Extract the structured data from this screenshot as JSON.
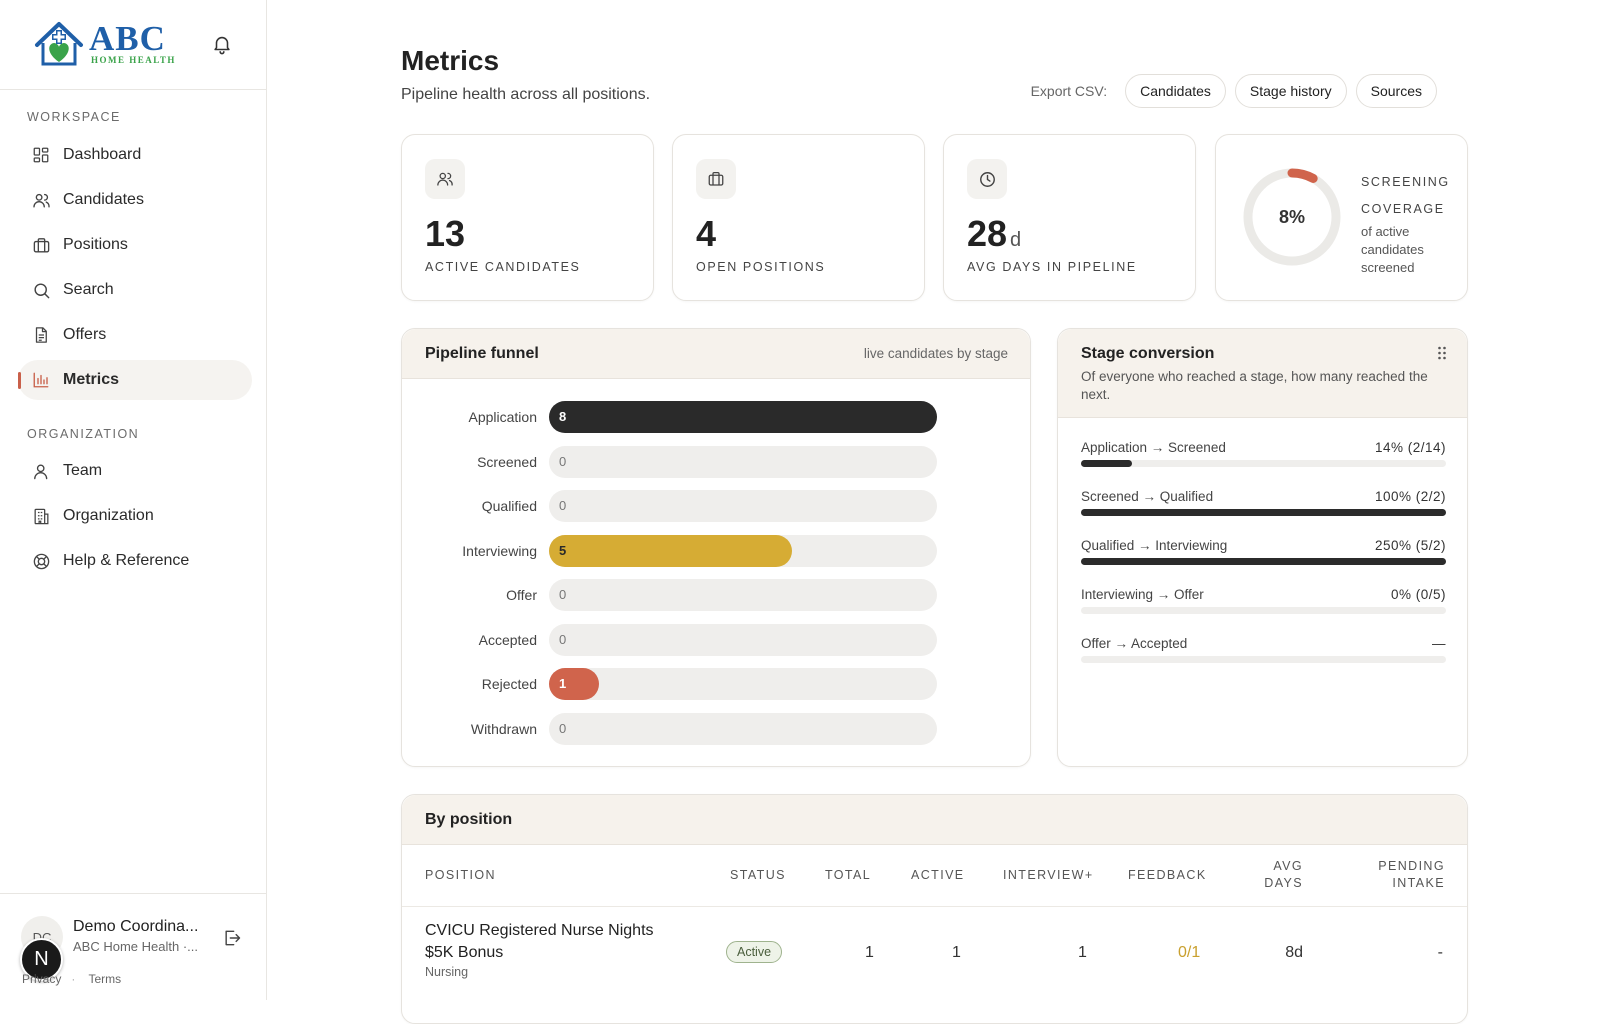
{
  "brand": {
    "name": "ABC",
    "tagline": "HOME HEALTH"
  },
  "sidebar": {
    "workspace_label": "WORKSPACE",
    "organization_label": "ORGANIZATION",
    "workspace_items": [
      {
        "label": "Dashboard",
        "icon": "dashboard-icon"
      },
      {
        "label": "Candidates",
        "icon": "users-icon"
      },
      {
        "label": "Positions",
        "icon": "briefcase-icon"
      },
      {
        "label": "Search",
        "icon": "search-icon"
      },
      {
        "label": "Offers",
        "icon": "document-icon"
      },
      {
        "label": "Metrics",
        "icon": "bar-chart-icon",
        "active": true
      }
    ],
    "organization_items": [
      {
        "label": "Team",
        "icon": "user-icon"
      },
      {
        "label": "Organization",
        "icon": "building-icon"
      },
      {
        "label": "Help & Reference",
        "icon": "lifebuoy-icon"
      }
    ]
  },
  "user": {
    "initials": "DC",
    "name": "Demo Coordina...",
    "org": "ABC Home Health ·...",
    "badge_letter": "N",
    "privacy": "Privacy",
    "terms": "Terms"
  },
  "header": {
    "title": "Metrics",
    "subtitle": "Pipeline health across all positions.",
    "export_label": "Export CSV:",
    "export_buttons": [
      "Candidates",
      "Stage history",
      "Sources"
    ]
  },
  "kpis": [
    {
      "value": "13",
      "unit": "",
      "label": "ACTIVE CANDIDATES",
      "icon": "users-icon"
    },
    {
      "value": "4",
      "unit": "",
      "label": "OPEN POSITIONS",
      "icon": "briefcase-icon"
    },
    {
      "value": "28",
      "unit": "d",
      "label": "AVG DAYS IN PIPELINE",
      "icon": "clock-icon"
    }
  ],
  "coverage": {
    "percent_label": "8%",
    "percent": 8,
    "title": "SCREENING COVERAGE",
    "subtitle": "of active candidates screened",
    "color": "#d0644c"
  },
  "funnel": {
    "title": "Pipeline funnel",
    "subtitle": "live candidates by stage",
    "max": 8,
    "stages": [
      {
        "label": "Application",
        "value": 8,
        "color": "#2a2a2a",
        "text_color": "#ffffff"
      },
      {
        "label": "Screened",
        "value": 0,
        "color": "#efeeec",
        "text_color": "#777777"
      },
      {
        "label": "Qualified",
        "value": 0,
        "color": "#efeeec",
        "text_color": "#777777"
      },
      {
        "label": "Interviewing",
        "value": 5,
        "color": "#d6ac34",
        "text_color": "#2a2a2a"
      },
      {
        "label": "Offer",
        "value": 0,
        "color": "#efeeec",
        "text_color": "#777777"
      },
      {
        "label": "Accepted",
        "value": 0,
        "color": "#efeeec",
        "text_color": "#777777"
      },
      {
        "label": "Rejected",
        "value": 1,
        "color": "#d0644c",
        "text_color": "#ffffff"
      },
      {
        "label": "Withdrawn",
        "value": 0,
        "color": "#efeeec",
        "text_color": "#777777"
      }
    ]
  },
  "conversion": {
    "title": "Stage conversion",
    "subtitle": "Of everyone who reached a stage, how many reached the next.",
    "rows": [
      {
        "label": "Application → Screened",
        "value_label": "14% (2/14)",
        "fraction": 0.14
      },
      {
        "label": "Screened → Qualified",
        "value_label": "100% (2/2)",
        "fraction": 1.0
      },
      {
        "label": "Qualified → Interviewing",
        "value_label": "250% (5/2)",
        "fraction": 1.0
      },
      {
        "label": "Interviewing → Offer",
        "value_label": "0% (0/5)",
        "fraction": 0
      },
      {
        "label": "Offer → Accepted",
        "value_label": "—",
        "fraction": 0
      }
    ]
  },
  "by_position": {
    "title": "By position",
    "columns": [
      "POSITION",
      "STATUS",
      "TOTAL",
      "ACTIVE",
      "INTERVIEW+",
      "FEEDBACK",
      "AVG DAYS",
      "PENDING INTAKE"
    ],
    "rows": [
      {
        "position_line1": "CVICU Registered Nurse Nights",
        "position_line2": "$5K Bonus",
        "department": "Nursing",
        "status": "Active",
        "total": "1",
        "active": "1",
        "interview": "1",
        "feedback": "0/1",
        "avg_days": "8d",
        "pending_intake": "-"
      }
    ]
  }
}
